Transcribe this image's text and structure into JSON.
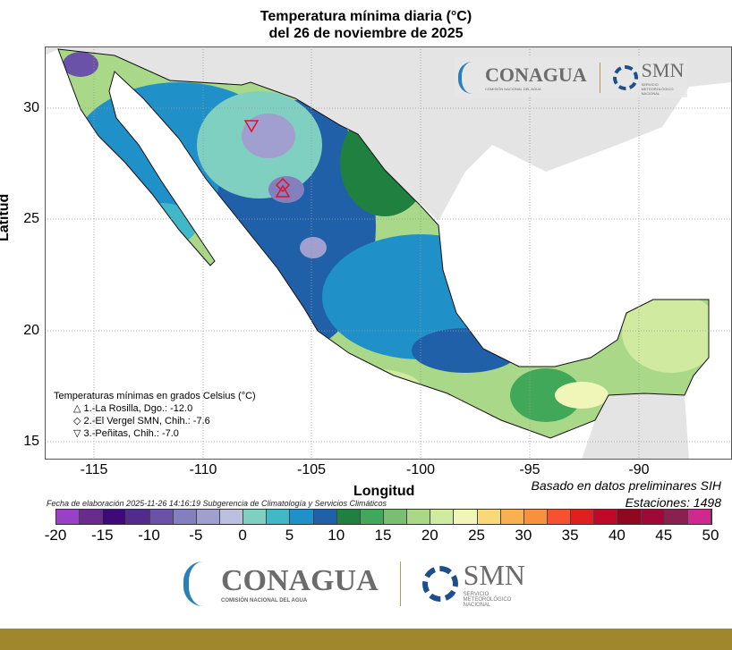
{
  "title": {
    "line1": "Temperatura mínima diaria (°C)",
    "line2": "del 26 de noviembre de 2025"
  },
  "axes": {
    "ylabel": "Latitud",
    "xlabel": "Longitud",
    "yticks": [
      "30",
      "25",
      "20",
      "15"
    ],
    "xticks": [
      "-115",
      "-110",
      "-105",
      "-100",
      "-95",
      "-90"
    ]
  },
  "legend": {
    "title": "Temperaturas mínimas en grados Celsius (°C)",
    "items": [
      {
        "symbol": "△",
        "label": "1.-La Rosilla, Dgo.: -12.0"
      },
      {
        "symbol": "◇",
        "label": "2.-El Vergel SMN, Chih.: -7.6"
      },
      {
        "symbol": "▽",
        "label": "3.-Peñitas, Chih.: -7.0"
      }
    ]
  },
  "notes": {
    "basado": "Basado en datos preliminares SIH",
    "estaciones": "Estaciones:  1498",
    "fecha": "Fecha de elaboración 2025-11-26 14:16:19 Subgerencia de Climatología y Servicios Climáticos"
  },
  "colorbar": {
    "ticks": [
      "-20",
      "-15",
      "-10",
      "-5",
      "0",
      "5",
      "10",
      "15",
      "20",
      "25",
      "30",
      "35",
      "40",
      "45",
      "50"
    ],
    "range": [
      -20,
      50
    ],
    "step": 2.5,
    "colors": [
      "#9a3fc8",
      "#6a2a8e",
      "#3d0a78",
      "#532a8e",
      "#6a52a8",
      "#8480bf",
      "#a09fd0",
      "#bcbfe0",
      "#7fd0c0",
      "#40b8c8",
      "#2090c8",
      "#2060a8",
      "#208040",
      "#40a858",
      "#78c070",
      "#a8d888",
      "#d0eaa0",
      "#f0f5b8",
      "#f8d878",
      "#f8b050",
      "#f89040",
      "#f85030",
      "#e02020",
      "#c00828",
      "#900820",
      "#a00838",
      "#882050",
      "#d02890"
    ]
  },
  "logos": {
    "conagua": "CONAGUA",
    "conagua_sub": "COMISIÓN NACIONAL DEL AGUA",
    "smn": "SMN",
    "smn_sub": "SERVICIO METEOROLÓGICO NACIONAL"
  }
}
